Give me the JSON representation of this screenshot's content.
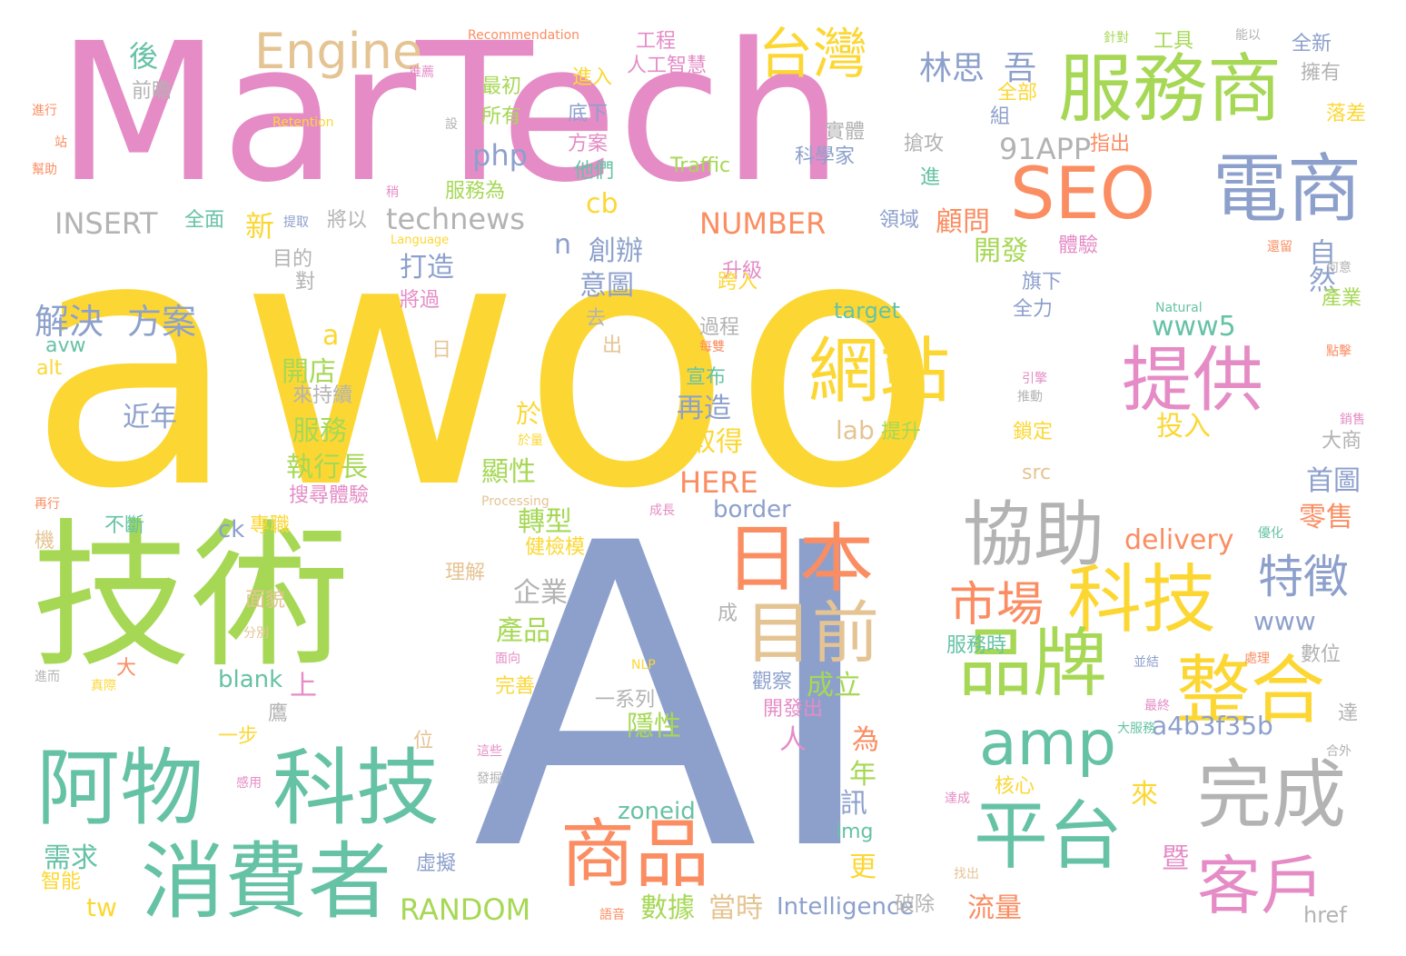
{
  "colors": {
    "background": "#ffffff",
    "palette": {
      "yellow": "#fcd734",
      "pink": "#e58cc6",
      "green": "#a6d855",
      "blue": "#8da0cc",
      "teal": "#66c2a5",
      "orange": "#fb8d62",
      "tan": "#e5c494",
      "gray": "#b3b3b3"
    }
  },
  "words": [
    {
      "text": "awoo",
      "color": "yellow"
    },
    {
      "text": "MarTech",
      "color": "pink"
    },
    {
      "text": "AI",
      "color": "blue"
    },
    {
      "text": "技術",
      "color": "green"
    },
    {
      "text": "阿物",
      "color": "teal"
    },
    {
      "text": "科技",
      "color": "teal"
    },
    {
      "text": "消費者",
      "color": "teal"
    },
    {
      "text": "Engine",
      "color": "tan"
    },
    {
      "text": "服務商",
      "color": "green"
    },
    {
      "text": "電商",
      "color": "blue"
    },
    {
      "text": "SEO",
      "color": "orange"
    },
    {
      "text": "台灣",
      "color": "yellow"
    },
    {
      "text": "網站",
      "color": "yellow"
    },
    {
      "text": "提供",
      "color": "pink"
    },
    {
      "text": "協助",
      "color": "gray"
    },
    {
      "text": "日本",
      "color": "orange"
    },
    {
      "text": "目前",
      "color": "tan"
    },
    {
      "text": "科技",
      "color": "yellow"
    },
    {
      "text": "品牌",
      "color": "green"
    },
    {
      "text": "整合",
      "color": "yellow"
    },
    {
      "text": "amp",
      "color": "teal"
    },
    {
      "text": "完成",
      "color": "gray"
    },
    {
      "text": "平台",
      "color": "teal"
    },
    {
      "text": "商品",
      "color": "orange"
    },
    {
      "text": "客戶",
      "color": "pink"
    },
    {
      "text": "市場",
      "color": "orange"
    },
    {
      "text": "特徵",
      "color": "blue"
    },
    {
      "text": "林思",
      "color": "blue"
    },
    {
      "text": "吾",
      "color": "blue"
    },
    {
      "text": "91APP",
      "color": "gray"
    },
    {
      "text": "解決",
      "color": "blue"
    },
    {
      "text": "方案",
      "color": "blue"
    },
    {
      "text": "technews",
      "color": "gray"
    },
    {
      "text": "NUMBER",
      "color": "orange"
    },
    {
      "text": "INSERT",
      "color": "gray"
    },
    {
      "text": "RANDOM",
      "color": "green"
    },
    {
      "text": "www5",
      "color": "teal"
    },
    {
      "text": "a4b3f35b",
      "color": "blue"
    },
    {
      "text": "HERE",
      "color": "orange"
    },
    {
      "text": "delivery",
      "color": "orange"
    },
    {
      "text": "php",
      "color": "blue"
    },
    {
      "text": "cb",
      "color": "yellow"
    },
    {
      "text": "Intelligence",
      "color": "blue"
    },
    {
      "text": "zoneid",
      "color": "teal"
    },
    {
      "text": "border",
      "color": "blue"
    },
    {
      "text": "target",
      "color": "teal"
    },
    {
      "text": "lab",
      "color": "tan"
    },
    {
      "text": "www",
      "color": "blue"
    },
    {
      "text": "blank",
      "color": "teal"
    },
    {
      "text": "tw",
      "color": "yellow"
    },
    {
      "text": "ck",
      "color": "blue"
    },
    {
      "text": "src",
      "color": "tan"
    },
    {
      "text": "img",
      "color": "teal"
    },
    {
      "text": "href",
      "color": "gray"
    },
    {
      "text": "alt",
      "color": "yellow"
    },
    {
      "text": "avw",
      "color": "teal"
    },
    {
      "text": "Traffic",
      "color": "green"
    },
    {
      "text": "Recommendation",
      "color": "orange"
    },
    {
      "text": "Retention",
      "color": "yellow"
    },
    {
      "text": "Language",
      "color": "yellow"
    },
    {
      "text": "Processing",
      "color": "tan"
    },
    {
      "text": "Natural",
      "color": "teal"
    },
    {
      "text": "NLP",
      "color": "yellow"
    },
    {
      "text": "後",
      "color": "teal"
    },
    {
      "text": "前瞻",
      "color": "gray"
    },
    {
      "text": "工程",
      "color": "pink"
    },
    {
      "text": "人工智慧",
      "color": "pink"
    },
    {
      "text": "最初",
      "color": "green"
    },
    {
      "text": "所有",
      "color": "green"
    },
    {
      "text": "進入",
      "color": "yellow"
    },
    {
      "text": "底下",
      "color": "blue"
    },
    {
      "text": "方案",
      "color": "pink"
    },
    {
      "text": "他們",
      "color": "teal"
    },
    {
      "text": "服務為",
      "color": "green"
    },
    {
      "text": "全面",
      "color": "teal"
    },
    {
      "text": "將以",
      "color": "gray"
    },
    {
      "text": "實體",
      "color": "gray"
    },
    {
      "text": "科學家",
      "color": "blue"
    },
    {
      "text": "搶攻",
      "color": "gray"
    },
    {
      "text": "進",
      "color": "teal"
    },
    {
      "text": "領域",
      "color": "blue"
    },
    {
      "text": "顧問",
      "color": "orange"
    },
    {
      "text": "開發",
      "color": "green"
    },
    {
      "text": "自然",
      "color": "blue"
    },
    {
      "text": "全部",
      "color": "yellow"
    },
    {
      "text": "組",
      "color": "blue"
    },
    {
      "text": "指出",
      "color": "orange"
    },
    {
      "text": "全新",
      "color": "blue"
    },
    {
      "text": "擁有",
      "color": "gray"
    },
    {
      "text": "落差",
      "color": "yellow"
    },
    {
      "text": "工具",
      "color": "green"
    },
    {
      "text": "針對",
      "color": "green"
    },
    {
      "text": "能以",
      "color": "gray"
    },
    {
      "text": "新",
      "color": "yellow"
    },
    {
      "text": "打造",
      "color": "blue"
    },
    {
      "text": "意圖",
      "color": "blue"
    },
    {
      "text": "創辦",
      "color": "blue"
    },
    {
      "text": "n",
      "color": "blue"
    },
    {
      "text": "目的",
      "color": "gray"
    },
    {
      "text": "對",
      "color": "gray"
    },
    {
      "text": "將過",
      "color": "pink"
    },
    {
      "text": "升級",
      "color": "pink"
    },
    {
      "text": "跨入",
      "color": "yellow"
    },
    {
      "text": "體驗",
      "color": "pink"
    },
    {
      "text": "旗下",
      "color": "blue"
    },
    {
      "text": "全力",
      "color": "blue"
    },
    {
      "text": "產業",
      "color": "green"
    },
    {
      "text": "a",
      "color": "yellow"
    },
    {
      "text": "開店",
      "color": "green"
    },
    {
      "text": "來持續",
      "color": "gray"
    },
    {
      "text": "近年",
      "color": "blue"
    },
    {
      "text": "服務",
      "color": "green"
    },
    {
      "text": "執行長",
      "color": "green"
    },
    {
      "text": "搜尋體驗",
      "color": "pink"
    },
    {
      "text": "於",
      "color": "yellow"
    },
    {
      "text": "顯性",
      "color": "green"
    },
    {
      "text": "再造",
      "color": "blue"
    },
    {
      "text": "取得",
      "color": "yellow"
    },
    {
      "text": "宣布",
      "color": "teal"
    },
    {
      "text": "過程",
      "color": "gray"
    },
    {
      "text": "提升",
      "color": "green"
    },
    {
      "text": "投入",
      "color": "yellow"
    },
    {
      "text": "鎖定",
      "color": "yellow"
    },
    {
      "text": "大商",
      "color": "gray"
    },
    {
      "text": "首圖",
      "color": "blue"
    },
    {
      "text": "零售",
      "color": "orange"
    },
    {
      "text": "轉型",
      "color": "green"
    },
    {
      "text": "健檢模",
      "color": "yellow"
    },
    {
      "text": "企業",
      "color": "gray"
    },
    {
      "text": "理解",
      "color": "tan"
    },
    {
      "text": "產品",
      "color": "green"
    },
    {
      "text": "成立",
      "color": "green"
    },
    {
      "text": "觀察",
      "color": "blue"
    },
    {
      "text": "隱性",
      "color": "green"
    },
    {
      "text": "一系列",
      "color": "gray"
    },
    {
      "text": "開發出",
      "color": "pink"
    },
    {
      "text": "完善",
      "color": "yellow"
    },
    {
      "text": "人",
      "color": "pink"
    },
    {
      "text": "為",
      "color": "orange"
    },
    {
      "text": "年",
      "color": "green"
    },
    {
      "text": "資訊",
      "color": "blue"
    },
    {
      "text": "更",
      "color": "yellow"
    },
    {
      "text": "來",
      "color": "yellow"
    },
    {
      "text": "流量",
      "color": "orange"
    },
    {
      "text": "數據",
      "color": "green"
    },
    {
      "text": "當時",
      "color": "tan"
    },
    {
      "text": "破除",
      "color": "gray"
    },
    {
      "text": "需求",
      "color": "teal"
    },
    {
      "text": "智能",
      "color": "yellow"
    },
    {
      "text": "虛擬",
      "color": "blue"
    },
    {
      "text": "數位",
      "color": "gray"
    },
    {
      "text": "達",
      "color": "gray"
    },
    {
      "text": "服務時",
      "color": "teal"
    },
    {
      "text": "核心",
      "color": "yellow"
    },
    {
      "text": "優化",
      "color": "teal"
    },
    {
      "text": "不斷",
      "color": "teal"
    },
    {
      "text": "專職",
      "color": "yellow"
    },
    {
      "text": "上",
      "color": "pink"
    },
    {
      "text": "面貌",
      "color": "tan"
    },
    {
      "text": "機",
      "color": "tan"
    },
    {
      "text": "位",
      "color": "tan"
    },
    {
      "text": "一步",
      "color": "yellow"
    },
    {
      "text": "鷹",
      "color": "gray"
    },
    {
      "text": "暨",
      "color": "pink"
    },
    {
      "text": "成",
      "color": "gray"
    },
    {
      "text": "去",
      "color": "gray"
    },
    {
      "text": "出",
      "color": "tan"
    },
    {
      "text": "日",
      "color": "tan"
    },
    {
      "text": "推薦",
      "color": "pink"
    },
    {
      "text": "設",
      "color": "gray"
    },
    {
      "text": "進行",
      "color": "orange"
    },
    {
      "text": "站",
      "color": "orange"
    },
    {
      "text": "幫助",
      "color": "orange"
    },
    {
      "text": "稍",
      "color": "pink"
    },
    {
      "text": "提取",
      "color": "blue"
    },
    {
      "text": "還留",
      "color": "orange"
    },
    {
      "text": "何意",
      "color": "gray"
    },
    {
      "text": "每雙",
      "color": "orange"
    },
    {
      "text": "引擎",
      "color": "pink"
    },
    {
      "text": "推動",
      "color": "gray"
    },
    {
      "text": "點擊",
      "color": "orange"
    },
    {
      "text": "銷售",
      "color": "pink"
    },
    {
      "text": "再行",
      "color": "orange"
    },
    {
      "text": "於量",
      "color": "yellow"
    },
    {
      "text": "成長",
      "color": "pink"
    },
    {
      "text": "分別",
      "color": "tan"
    },
    {
      "text": "面向",
      "color": "pink"
    },
    {
      "text": "大",
      "color": "orange"
    },
    {
      "text": "真際",
      "color": "yellow"
    },
    {
      "text": "進而",
      "color": "gray"
    },
    {
      "text": "並結",
      "color": "blue"
    },
    {
      "text": "處理",
      "color": "orange"
    },
    {
      "text": "最終",
      "color": "pink"
    },
    {
      "text": "大服務",
      "color": "teal"
    },
    {
      "text": "合外",
      "color": "gray"
    },
    {
      "text": "達成",
      "color": "pink"
    },
    {
      "text": "這些",
      "color": "pink"
    },
    {
      "text": "發掘",
      "color": "gray"
    },
    {
      "text": "感用",
      "color": "pink"
    },
    {
      "text": "找出",
      "color": "tan"
    },
    {
      "text": "語音",
      "color": "orange"
    }
  ]
}
